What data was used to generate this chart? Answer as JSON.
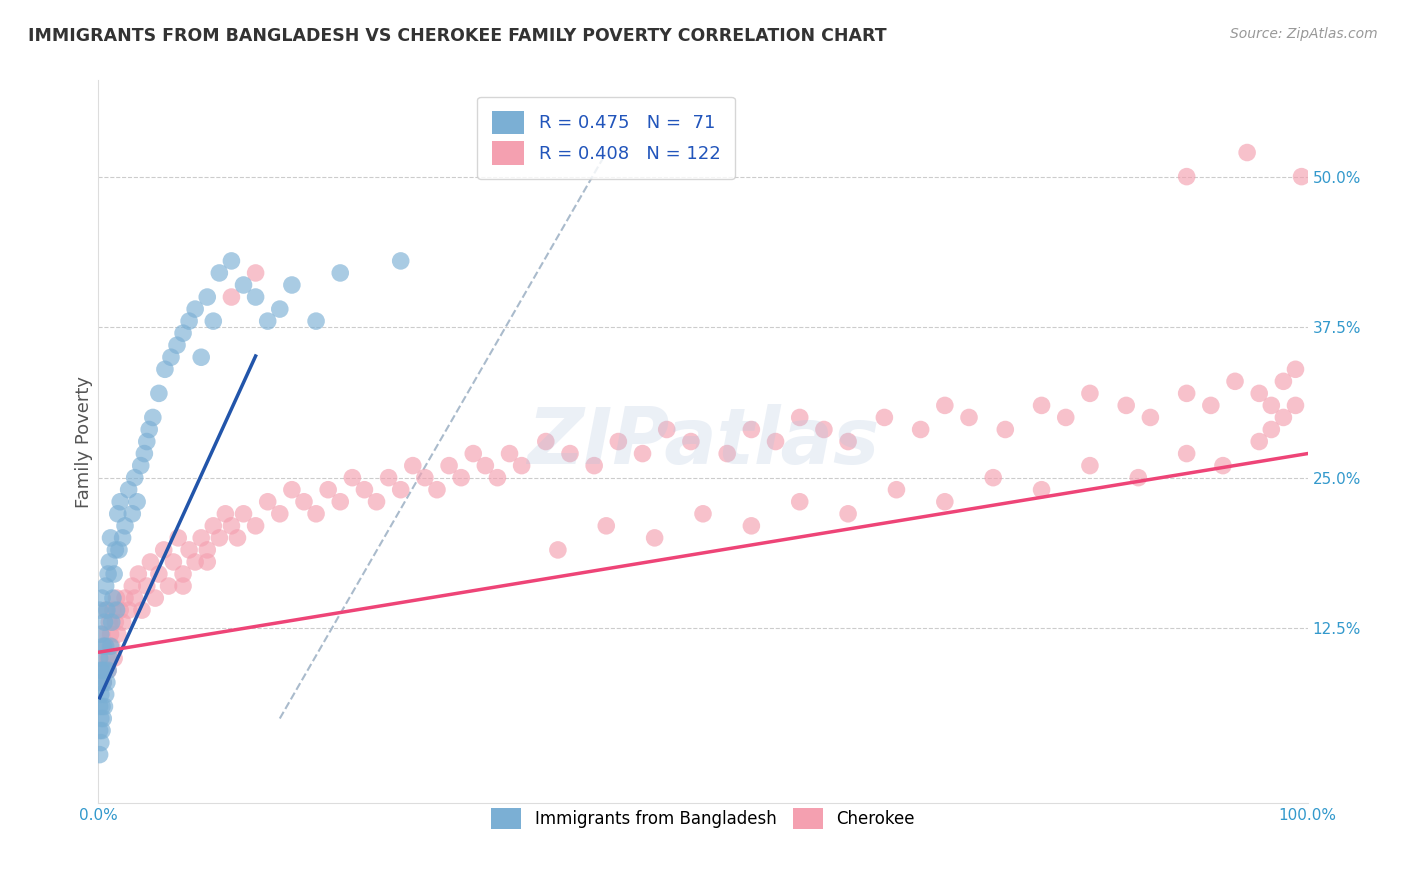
{
  "title": "IMMIGRANTS FROM BANGLADESH VS CHEROKEE FAMILY POVERTY CORRELATION CHART",
  "source_text": "Source: ZipAtlas.com",
  "ylabel": "Family Poverty",
  "xlim": [
    0.0,
    1.0
  ],
  "ylim": [
    -0.02,
    0.58
  ],
  "bg_color": "#ffffff",
  "grid_color": "#cccccc",
  "blue_color": "#7BAFD4",
  "pink_color": "#F4A0B0",
  "blue_line_color": "#2255AA",
  "pink_line_color": "#EE4477",
  "dash_line_color": "#AABBCC",
  "legend_blue_label": "Immigrants from Bangladesh",
  "legend_pink_label": "Cherokee",
  "R_blue": 0.475,
  "N_blue": 71,
  "R_pink": 0.408,
  "N_pink": 122,
  "watermark": "ZIPatlas",
  "blue_scatter_x": [
    0.001,
    0.001,
    0.001,
    0.001,
    0.001,
    0.001,
    0.002,
    0.002,
    0.002,
    0.002,
    0.002,
    0.003,
    0.003,
    0.003,
    0.003,
    0.004,
    0.004,
    0.004,
    0.005,
    0.005,
    0.005,
    0.006,
    0.006,
    0.006,
    0.007,
    0.007,
    0.008,
    0.008,
    0.009,
    0.009,
    0.01,
    0.01,
    0.011,
    0.012,
    0.013,
    0.014,
    0.015,
    0.016,
    0.017,
    0.018,
    0.02,
    0.022,
    0.025,
    0.028,
    0.03,
    0.032,
    0.035,
    0.038,
    0.04,
    0.042,
    0.045,
    0.05,
    0.055,
    0.06,
    0.065,
    0.07,
    0.075,
    0.08,
    0.085,
    0.09,
    0.095,
    0.1,
    0.11,
    0.12,
    0.13,
    0.14,
    0.15,
    0.16,
    0.18,
    0.2,
    0.25
  ],
  "blue_scatter_y": [
    0.02,
    0.04,
    0.06,
    0.08,
    0.1,
    0.14,
    0.03,
    0.05,
    0.07,
    0.09,
    0.12,
    0.04,
    0.06,
    0.09,
    0.15,
    0.05,
    0.08,
    0.11,
    0.06,
    0.09,
    0.13,
    0.07,
    0.11,
    0.16,
    0.08,
    0.14,
    0.09,
    0.17,
    0.1,
    0.18,
    0.11,
    0.2,
    0.13,
    0.15,
    0.17,
    0.19,
    0.14,
    0.22,
    0.19,
    0.23,
    0.2,
    0.21,
    0.24,
    0.22,
    0.25,
    0.23,
    0.26,
    0.27,
    0.28,
    0.29,
    0.3,
    0.32,
    0.34,
    0.35,
    0.36,
    0.37,
    0.38,
    0.39,
    0.35,
    0.4,
    0.38,
    0.42,
    0.43,
    0.41,
    0.4,
    0.38,
    0.39,
    0.41,
    0.38,
    0.42,
    0.43
  ],
  "pink_scatter_x": [
    0.001,
    0.002,
    0.003,
    0.004,
    0.005,
    0.006,
    0.007,
    0.008,
    0.009,
    0.01,
    0.011,
    0.012,
    0.013,
    0.014,
    0.015,
    0.016,
    0.018,
    0.02,
    0.022,
    0.025,
    0.028,
    0.03,
    0.033,
    0.036,
    0.04,
    0.043,
    0.047,
    0.05,
    0.054,
    0.058,
    0.062,
    0.066,
    0.07,
    0.075,
    0.08,
    0.085,
    0.09,
    0.095,
    0.1,
    0.105,
    0.11,
    0.115,
    0.12,
    0.13,
    0.14,
    0.15,
    0.16,
    0.17,
    0.18,
    0.19,
    0.2,
    0.21,
    0.22,
    0.23,
    0.24,
    0.25,
    0.26,
    0.27,
    0.28,
    0.29,
    0.3,
    0.31,
    0.32,
    0.33,
    0.34,
    0.35,
    0.37,
    0.39,
    0.41,
    0.43,
    0.45,
    0.47,
    0.49,
    0.52,
    0.54,
    0.56,
    0.58,
    0.6,
    0.62,
    0.65,
    0.68,
    0.7,
    0.72,
    0.75,
    0.78,
    0.8,
    0.82,
    0.85,
    0.87,
    0.9,
    0.92,
    0.94,
    0.96,
    0.97,
    0.98,
    0.99,
    0.995,
    0.38,
    0.42,
    0.46,
    0.5,
    0.54,
    0.58,
    0.62,
    0.66,
    0.7,
    0.74,
    0.78,
    0.82,
    0.86,
    0.9,
    0.93,
    0.96,
    0.9,
    0.95,
    0.97,
    0.98,
    0.99,
    0.07,
    0.09,
    0.11,
    0.13
  ],
  "pink_scatter_y": [
    0.1,
    0.09,
    0.12,
    0.08,
    0.11,
    0.14,
    0.1,
    0.09,
    0.13,
    0.12,
    0.11,
    0.14,
    0.1,
    0.13,
    0.15,
    0.12,
    0.14,
    0.13,
    0.15,
    0.14,
    0.16,
    0.15,
    0.17,
    0.14,
    0.16,
    0.18,
    0.15,
    0.17,
    0.19,
    0.16,
    0.18,
    0.2,
    0.17,
    0.19,
    0.18,
    0.2,
    0.19,
    0.21,
    0.2,
    0.22,
    0.21,
    0.2,
    0.22,
    0.21,
    0.23,
    0.22,
    0.24,
    0.23,
    0.22,
    0.24,
    0.23,
    0.25,
    0.24,
    0.23,
    0.25,
    0.24,
    0.26,
    0.25,
    0.24,
    0.26,
    0.25,
    0.27,
    0.26,
    0.25,
    0.27,
    0.26,
    0.28,
    0.27,
    0.26,
    0.28,
    0.27,
    0.29,
    0.28,
    0.27,
    0.29,
    0.28,
    0.3,
    0.29,
    0.28,
    0.3,
    0.29,
    0.31,
    0.3,
    0.29,
    0.31,
    0.3,
    0.32,
    0.31,
    0.3,
    0.32,
    0.31,
    0.33,
    0.32,
    0.31,
    0.33,
    0.34,
    0.5,
    0.19,
    0.21,
    0.2,
    0.22,
    0.21,
    0.23,
    0.22,
    0.24,
    0.23,
    0.25,
    0.24,
    0.26,
    0.25,
    0.27,
    0.26,
    0.28,
    0.5,
    0.52,
    0.29,
    0.3,
    0.31,
    0.16,
    0.18,
    0.4,
    0.42
  ],
  "blue_line_x": [
    0.001,
    0.13
  ],
  "blue_line_y_intercept": 0.065,
  "blue_line_slope": 2.2,
  "pink_line_x": [
    0.001,
    1.0
  ],
  "pink_line_y_intercept": 0.105,
  "pink_line_slope": 0.165,
  "dash_line_x1": 0.15,
  "dash_line_y1": 0.05,
  "dash_line_x2": 0.42,
  "dash_line_y2": 0.52
}
